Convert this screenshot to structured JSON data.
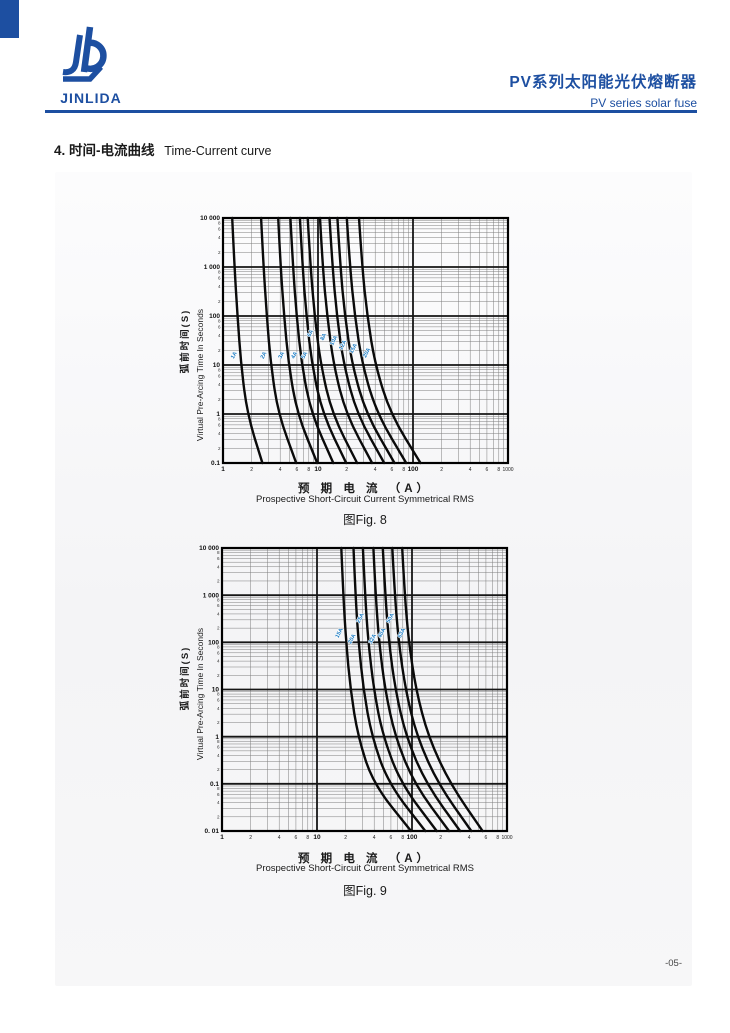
{
  "page": {
    "number": "-05-",
    "accent_color": "#1d4fa1"
  },
  "header": {
    "logo_text": "JINLIDA",
    "title_cn": "PV系列太阳能光伏熔断器",
    "title_en": "PV series solar fuse"
  },
  "section": {
    "number": "4.",
    "title_cn": "时间-电流曲线",
    "title_en": "Time-Current curve"
  },
  "chart_data": [
    {
      "type": "line",
      "figure_caption": "图Fig. 8",
      "xlabel_cn": "预 期 电 流 （A）",
      "xlabel_en": "Prospective Short-Circuit Current Symmetrical RMS",
      "ylabel_cn": "弧前时间(S)",
      "ylabel_en": "Virtual Pre-Arcing Time In Seconds",
      "x_scale": "log",
      "y_scale": "log",
      "x_range": [
        1,
        1000
      ],
      "y_range": [
        0.1,
        10000
      ],
      "grid": "log-log full minor grid",
      "curve_color": "#0a0a0a",
      "curve_label_color": "#1879c2",
      "x_tick_labels": [
        {
          "v": 1,
          "t": "1"
        },
        {
          "v": 2,
          "t": "2"
        },
        {
          "v": 4,
          "t": "4"
        },
        {
          "v": 6,
          "t": "6"
        },
        {
          "v": 8,
          "t": "8"
        },
        {
          "v": 10,
          "t": "10"
        },
        {
          "v": 20,
          "t": "2"
        },
        {
          "v": 40,
          "t": "4"
        },
        {
          "v": 60,
          "t": "6"
        },
        {
          "v": 80,
          "t": "8"
        },
        {
          "v": 100,
          "t": "100"
        },
        {
          "v": 200,
          "t": "2"
        },
        {
          "v": 400,
          "t": "4"
        },
        {
          "v": 600,
          "t": "6"
        },
        {
          "v": 800,
          "t": "8"
        },
        {
          "v": 1000,
          "t": "1000"
        }
      ],
      "y_tick_labels": [
        {
          "v": 10000,
          "t": "10 000"
        },
        {
          "v": 1000,
          "t": "1 000"
        },
        {
          "v": 100,
          "t": "100"
        },
        {
          "v": 10,
          "t": "10"
        },
        {
          "v": 1,
          "t": "1"
        },
        {
          "v": 0.1,
          "t": "0.1"
        }
      ],
      "y_minor_tick_labels": [
        "8",
        "6",
        "4",
        "2"
      ],
      "series": [
        {
          "name": "1A",
          "label_t": 16,
          "points": [
            [
              1.25,
              10000
            ],
            [
              1.32,
              1000
            ],
            [
              1.42,
              100
            ],
            [
              1.55,
              10
            ],
            [
              1.8,
              1
            ],
            [
              2.6,
              0.1
            ]
          ]
        },
        {
          "name": "2A",
          "label_t": 16,
          "points": [
            [
              2.52,
              10000
            ],
            [
              2.67,
              1000
            ],
            [
              2.89,
              100
            ],
            [
              3.19,
              10
            ],
            [
              3.82,
              1
            ],
            [
              5.9,
              0.1
            ]
          ]
        },
        {
          "name": "3A",
          "label_t": 16,
          "points": [
            [
              3.81,
              10000
            ],
            [
              4.04,
              1000
            ],
            [
              4.4,
              100
            ],
            [
              4.92,
              10
            ],
            [
              6.06,
              1
            ],
            [
              9.8,
              0.1
            ]
          ]
        },
        {
          "name": "4A",
          "label_t": 16,
          "points": [
            [
              5.12,
              10000
            ],
            [
              5.45,
              1000
            ],
            [
              5.96,
              100
            ],
            [
              6.74,
              10
            ],
            [
              8.52,
              1
            ],
            [
              14.5,
              0.1
            ]
          ]
        },
        {
          "name": "5A",
          "label_t": 16,
          "points": [
            [
              6.45,
              10000
            ],
            [
              6.88,
              1000
            ],
            [
              7.56,
              100
            ],
            [
              8.65,
              10
            ],
            [
              11.2,
              1
            ],
            [
              19.8,
              0.1
            ]
          ]
        },
        {
          "name": "6A",
          "label_t": 45,
          "points": [
            [
              7.8,
              10000
            ],
            [
              8.34,
              1000
            ],
            [
              9.21,
              100
            ],
            [
              10.7,
              10
            ],
            [
              14.1,
              1
            ],
            [
              25.8,
              0.1
            ]
          ]
        },
        {
          "name": "8A",
          "label_t": 38,
          "points": [
            [
              10.5,
              10000
            ],
            [
              11.2,
              1000
            ],
            [
              12.5,
              100
            ],
            [
              14.6,
              10
            ],
            [
              19.7,
              1
            ],
            [
              37.1,
              0.1
            ]
          ]
        },
        {
          "name": "10A",
          "label_t": 32,
          "points": [
            [
              13.2,
              10000
            ],
            [
              14.2,
              1000
            ],
            [
              15.8,
              100
            ],
            [
              18.7,
              10
            ],
            [
              25.7,
              1
            ],
            [
              49.8,
              0.1
            ]
          ]
        },
        {
          "name": "12A",
          "label_t": 26,
          "points": [
            [
              16,
              10000
            ],
            [
              17.2,
              1000
            ],
            [
              19.2,
              100
            ],
            [
              22.9,
              10
            ],
            [
              32.2,
              1
            ],
            [
              63.8,
              0.1
            ]
          ]
        },
        {
          "name": "15A",
          "label_t": 22,
          "points": [
            [
              20.1,
              10000
            ],
            [
              21.7,
              1000
            ],
            [
              24.4,
              100
            ],
            [
              29.3,
              10
            ],
            [
              41.9,
              1
            ],
            [
              84.9,
              0.1
            ]
          ]
        },
        {
          "name": "20A",
          "label_t": 18,
          "points": [
            [
              27,
              10000
            ],
            [
              29.2,
              1000
            ],
            [
              33,
              100
            ],
            [
              40,
              10
            ],
            [
              58,
              1
            ],
            [
              120,
              0.1
            ]
          ]
        }
      ]
    },
    {
      "type": "line",
      "figure_caption": "图Fig. 9",
      "xlabel_cn": "预 期 电 流 （A）",
      "xlabel_en": "Prospective Short-Circuit Current Symmetrical RMS",
      "ylabel_cn": "弧前时间(S)",
      "ylabel_en": "Virtual Pre-Arcing Time In Seconds",
      "x_scale": "log",
      "y_scale": "log",
      "x_range": [
        1,
        1000
      ],
      "y_range": [
        0.01,
        10000
      ],
      "grid": "log-log full minor grid",
      "curve_color": "#0a0a0a",
      "curve_label_color": "#1879c2",
      "x_tick_labels": [
        {
          "v": 1,
          "t": "1"
        },
        {
          "v": 2,
          "t": "2"
        },
        {
          "v": 4,
          "t": "4"
        },
        {
          "v": 6,
          "t": "6"
        },
        {
          "v": 8,
          "t": "8"
        },
        {
          "v": 10,
          "t": "10"
        },
        {
          "v": 20,
          "t": "2"
        },
        {
          "v": 40,
          "t": "4"
        },
        {
          "v": 60,
          "t": "6"
        },
        {
          "v": 80,
          "t": "8"
        },
        {
          "v": 100,
          "t": "100"
        },
        {
          "v": 200,
          "t": "2"
        },
        {
          "v": 400,
          "t": "4"
        },
        {
          "v": 600,
          "t": "6"
        },
        {
          "v": 800,
          "t": "8"
        },
        {
          "v": 1000,
          "t": "1000"
        }
      ],
      "y_tick_labels": [
        {
          "v": 10000,
          "t": "10 000"
        },
        {
          "v": 1000,
          "t": "1 000"
        },
        {
          "v": 100,
          "t": "100"
        },
        {
          "v": 10,
          "t": "10"
        },
        {
          "v": 1,
          "t": "1"
        },
        {
          "v": 0.1,
          "t": "0.1"
        },
        {
          "v": 0.01,
          "t": "0. 01"
        }
      ],
      "y_minor_tick_labels": [
        "8",
        "6",
        "4",
        "2"
      ],
      "series": [
        {
          "name": "15A",
          "label_t": 160,
          "points": [
            [
              18,
              10000
            ],
            [
              18.9,
              1000
            ],
            [
              20.3,
              100
            ],
            [
              22.5,
              10
            ],
            [
              27,
              1
            ],
            [
              39,
              0.1
            ],
            [
              97.5,
              0.01
            ]
          ]
        },
        {
          "name": "20A",
          "label_t": 120,
          "points": [
            [
              24.2,
              10000
            ],
            [
              25.4,
              1000
            ],
            [
              27.4,
              100
            ],
            [
              30.8,
              10
            ],
            [
              37.8,
              1
            ],
            [
              56.7,
              0.1
            ],
            [
              138,
              0.01
            ]
          ]
        },
        {
          "name": "25A",
          "label_t": 330,
          "points": [
            [
              30.4,
              10000
            ],
            [
              32.1,
              1000
            ],
            [
              34.7,
              100
            ],
            [
              39.6,
              10
            ],
            [
              49.6,
              1
            ],
            [
              76.7,
              0.1
            ],
            [
              182,
              0.01
            ]
          ]
        },
        {
          "name": "32A",
          "label_t": 120,
          "points": [
            [
              39.2,
              10000
            ],
            [
              41.4,
              1000
            ],
            [
              45.1,
              100
            ],
            [
              52,
              10
            ],
            [
              66.4,
              1
            ],
            [
              105.6,
              0.1
            ],
            [
              245,
              0.01
            ]
          ]
        },
        {
          "name": "40A",
          "label_t": 160,
          "points": [
            [
              49.3,
              10000
            ],
            [
              52.3,
              1000
            ],
            [
              57.2,
              100
            ],
            [
              66.7,
              10
            ],
            [
              86.7,
              1
            ],
            [
              141,
              0.1
            ],
            [
              321,
              0.01
            ]
          ]
        },
        {
          "name": "50A",
          "label_t": 330,
          "points": [
            [
              62.1,
              10000
            ],
            [
              65.9,
              1000
            ],
            [
              72.5,
              100
            ],
            [
              85.4,
              10
            ],
            [
              112.9,
              1
            ],
            [
              188,
              0.1
            ],
            [
              421,
              0.01
            ]
          ]
        },
        {
          "name": "63A",
          "label_t": 160,
          "points": [
            [
              78.8,
              10000
            ],
            [
              83.8,
              1000
            ],
            [
              92.6,
              100
            ],
            [
              110,
              10
            ],
            [
              148,
              1
            ],
            [
              252,
              0.1
            ],
            [
              554,
              0.01
            ]
          ]
        }
      ]
    }
  ]
}
